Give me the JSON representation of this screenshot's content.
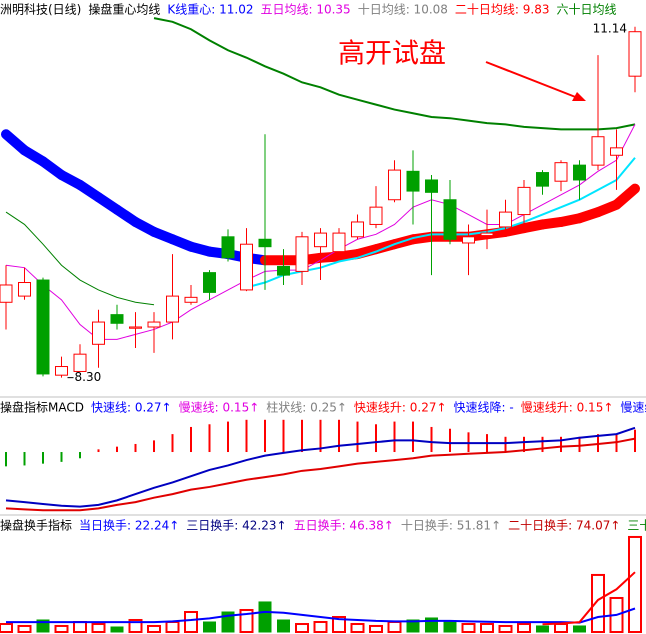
{
  "chart_data": [
    {
      "type": "candlestick",
      "title": "洲明科技(日线)",
      "subtitle": "操盘重心均线",
      "legend": [
        {
          "text": "K线重心: 11.02",
          "color": "#0000ff"
        },
        {
          "text": "五日均线: 10.35",
          "color": "#e000e0"
        },
        {
          "text": "十日均线: 10.08",
          "color": "#808080"
        },
        {
          "text": "二十日均线: 9.83",
          "color": "#ff0000"
        },
        {
          "text": "六十日均线",
          "color": "#008000"
        }
      ],
      "annotation": {
        "text": "高开试盘",
        "color": "#ff0000"
      },
      "high_label": 11.14,
      "low_label": {
        "value": 8.3,
        "label": "8.30"
      },
      "ylim": [
        8.2,
        11.3
      ],
      "up_color": "#ff0000",
      "down_color": "#00a000",
      "open": [
        8.91,
        8.96,
        9.09,
        8.32,
        8.35,
        8.57,
        8.81,
        8.7,
        8.71,
        8.75,
        8.91,
        9.15,
        9.44,
        9.01,
        9.42,
        9.2,
        9.16,
        9.36,
        9.32,
        9.44,
        9.54,
        9.74,
        9.97,
        9.9,
        9.74,
        9.39,
        9.45,
        9.52,
        9.62,
        9.96,
        9.89,
        10.02,
        10.02,
        10.1,
        10.74
      ],
      "high": [
        9.21,
        9.19,
        9.11,
        8.47,
        8.57,
        8.85,
        8.89,
        8.83,
        8.83,
        9.3,
        9.05,
        9.17,
        9.5,
        9.51,
        10.27,
        9.34,
        9.48,
        9.51,
        9.51,
        9.62,
        9.85,
        10.06,
        10.14,
        9.94,
        9.9,
        9.54,
        9.66,
        9.74,
        9.9,
        9.98,
        10.06,
        10.06,
        10.91,
        10.31,
        11.14
      ],
      "low": [
        8.69,
        8.93,
        8.31,
        8.3,
        8.35,
        8.38,
        8.69,
        8.54,
        8.5,
        8.61,
        8.89,
        8.93,
        9.24,
        9.0,
        9.01,
        9.05,
        9.05,
        9.09,
        9.27,
        9.42,
        9.51,
        9.72,
        9.54,
        9.13,
        9.38,
        9.13,
        9.34,
        9.46,
        9.54,
        9.78,
        9.81,
        9.74,
        9.98,
        9.82,
        10.61
      ],
      "close": [
        9.05,
        9.07,
        8.33,
        8.39,
        8.49,
        8.75,
        8.74,
        8.71,
        8.75,
        8.96,
        8.95,
        8.99,
        9.27,
        9.38,
        9.36,
        9.13,
        9.44,
        9.47,
        9.47,
        9.56,
        9.68,
        9.98,
        9.81,
        9.8,
        9.42,
        9.44,
        9.47,
        9.64,
        9.84,
        9.85,
        10.04,
        9.9,
        10.25,
        10.16,
        11.1
      ],
      "series": [
        {
          "color": "#0000ff",
          "rise_color": "#ff0000",
          "width": 10,
          "values": [
            10.27,
            10.14,
            10.05,
            9.94,
            9.86,
            9.76,
            9.66,
            9.56,
            9.48,
            9.42,
            9.36,
            9.32,
            9.3,
            9.27,
            9.25,
            9.25,
            9.25,
            9.27,
            9.28,
            9.3,
            9.34,
            9.38,
            9.42,
            9.44,
            9.44,
            9.44,
            9.46,
            9.48,
            9.51,
            9.54,
            9.56,
            9.59,
            9.64,
            9.7,
            9.83
          ]
        },
        {
          "color": "#008000",
          "values": [
            9.64,
            9.54,
            9.38,
            9.21,
            9.09,
            9.01,
            8.95,
            8.91,
            8.89,
            null,
            null,
            null,
            null,
            null,
            null,
            null,
            null,
            null,
            null,
            null,
            null,
            null,
            null,
            null,
            null,
            null,
            null,
            null,
            null,
            null,
            null,
            null,
            null,
            null,
            null
          ]
        },
        {
          "color": "#008000",
          "width": 2,
          "values": [
            null,
            null,
            null,
            null,
            null,
            null,
            null,
            null,
            11.21,
            11.18,
            11.12,
            11.03,
            10.95,
            10.89,
            10.82,
            10.76,
            10.69,
            10.65,
            10.59,
            10.55,
            10.51,
            10.47,
            10.44,
            10.41,
            10.4,
            10.38,
            10.36,
            10.35,
            10.33,
            10.32,
            10.31,
            10.31,
            10.31,
            10.32,
            10.35
          ]
        },
        {
          "color": "#00e5ff",
          "width": 2,
          "values": [
            null,
            null,
            null,
            null,
            null,
            null,
            null,
            null,
            null,
            null,
            null,
            null,
            null,
            9.03,
            9.07,
            9.13,
            9.16,
            9.19,
            9.24,
            9.27,
            9.32,
            9.38,
            9.43,
            9.46,
            9.46,
            9.46,
            9.48,
            9.51,
            9.56,
            9.62,
            9.68,
            9.74,
            9.82,
            9.9,
            10.08
          ]
        },
        {
          "color": "#e000e0",
          "values": [
            9.21,
            9.19,
            9.05,
            8.93,
            8.73,
            8.61,
            8.61,
            8.65,
            8.69,
            8.75,
            8.85,
            8.93,
            9.01,
            9.09,
            9.16,
            9.17,
            9.17,
            9.25,
            9.34,
            9.42,
            9.46,
            9.54,
            9.68,
            9.74,
            9.7,
            9.62,
            9.54,
            9.54,
            9.62,
            9.7,
            9.78,
            9.86,
            9.97,
            10.06,
            10.35
          ]
        }
      ]
    },
    {
      "type": "macd",
      "title": "操盘指标MACD",
      "legend": [
        {
          "text": "快速线: 0.27↑",
          "color": "#0000ff"
        },
        {
          "text": "慢速线: 0.15↑",
          "color": "#e000e0"
        },
        {
          "text": "柱状线: 0.25↑",
          "color": "#808080"
        },
        {
          "text": "快速线升: 0.27↑",
          "color": "#ff0000"
        },
        {
          "text": "快速线降: -",
          "color": "#0000ff"
        },
        {
          "text": "慢速线升: 0.15↑",
          "color": "#ff0000"
        },
        {
          "text": "慢速线",
          "color": "#0000ff"
        }
      ],
      "ylim": [
        -0.67,
        0.38
      ],
      "up_color": "#ff0000",
      "down_color": "#00a000",
      "values": [
        -0.16,
        -0.15,
        -0.13,
        -0.11,
        -0.07,
        0.03,
        0.06,
        0.09,
        0.13,
        0.2,
        0.28,
        0.31,
        0.34,
        0.36,
        0.36,
        0.36,
        0.36,
        0.36,
        0.36,
        0.34,
        0.31,
        0.34,
        0.34,
        0.28,
        0.26,
        0.22,
        0.2,
        0.17,
        0.17,
        0.17,
        0.17,
        0.17,
        0.2,
        0.2,
        0.25
      ],
      "series": [
        {
          "color": "#0000c0",
          "width": 2,
          "values": [
            -0.54,
            -0.56,
            -0.58,
            -0.6,
            -0.61,
            -0.59,
            -0.54,
            -0.47,
            -0.4,
            -0.34,
            -0.27,
            -0.2,
            -0.15,
            -0.09,
            -0.04,
            -0.01,
            0.02,
            0.04,
            0.07,
            0.09,
            0.11,
            0.13,
            0.13,
            0.11,
            0.1,
            0.1,
            0.1,
            0.1,
            0.11,
            0.12,
            0.13,
            0.16,
            0.18,
            0.2,
            0.27
          ]
        },
        {
          "color": "#e00000",
          "width": 2,
          "values": [
            -0.63,
            -0.64,
            -0.65,
            -0.65,
            -0.65,
            -0.63,
            -0.59,
            -0.56,
            -0.51,
            -0.47,
            -0.42,
            -0.39,
            -0.35,
            -0.31,
            -0.28,
            -0.25,
            -0.21,
            -0.19,
            -0.16,
            -0.13,
            -0.11,
            -0.09,
            -0.07,
            -0.04,
            -0.03,
            -0.02,
            -0.01,
            0,
            0.02,
            0.04,
            0.06,
            0.07,
            0.09,
            0.11,
            0.15
          ]
        }
      ]
    },
    {
      "type": "turnover",
      "title": "操盘换手指标",
      "legend": [
        {
          "text": "当日换手: 22.24↑",
          "color": "#0000ff"
        },
        {
          "text": "三日换手: 42.23↑",
          "color": "#000080"
        },
        {
          "text": "五日换手: 46.38↑",
          "color": "#e000e0"
        },
        {
          "text": "十日换手: 51.81↑",
          "color": "#808080"
        },
        {
          "text": "二十日换手: 74.07↑",
          "color": "#c00000"
        },
        {
          "text": "三十",
          "color": "#008000"
        }
      ],
      "ylim": [
        0,
        22.7
      ],
      "up_color": "#ff0000",
      "down_color": "#00a000",
      "values": [
        1.87,
        1.41,
        2.81,
        1.41,
        2.34,
        1.87,
        1.17,
        2.81,
        1.41,
        2.34,
        4.68,
        2.34,
        4.68,
        5.15,
        7.03,
        2.81,
        1.87,
        2.34,
        3.51,
        1.87,
        1.41,
        2.34,
        2.81,
        3.28,
        2.34,
        1.87,
        1.87,
        1.41,
        1.87,
        1.41,
        1.87,
        1.41,
        13.35,
        7.96,
        22.24
      ],
      "series": [
        {
          "color": "#0000ff",
          "width": 2,
          "values": [
            2.3,
            2.3,
            2.3,
            2.3,
            2.3,
            2.3,
            2.3,
            2.3,
            2.3,
            2.5,
            2.8,
            3.2,
            3.8,
            4.2,
            4.7,
            4.5,
            4.0,
            3.5,
            3.0,
            2.8,
            2.6,
            2.5,
            2.5,
            2.6,
            2.6,
            2.5,
            2.4,
            2.3,
            2.3,
            2.3,
            2.3,
            2.2,
            3.5,
            4.0,
            5.5
          ]
        },
        {
          "color": "#ff0000",
          "width": 2,
          "values": [
            null,
            null,
            null,
            null,
            null,
            null,
            null,
            null,
            null,
            null,
            null,
            null,
            null,
            null,
            null,
            null,
            null,
            null,
            null,
            null,
            null,
            null,
            null,
            null,
            null,
            null,
            null,
            null,
            null,
            1.8,
            2.0,
            2.3,
            7.5,
            10,
            14
          ]
        }
      ]
    }
  ]
}
